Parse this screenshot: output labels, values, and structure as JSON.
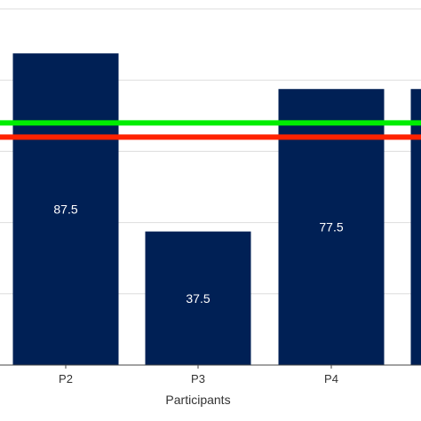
{
  "chart_data": {
    "type": "bar",
    "categories": [
      "P2",
      "P3",
      "P4",
      ""
    ],
    "values": [
      87.5,
      37.5,
      77.5,
      77.5
    ],
    "value_labels": [
      "87.5",
      "37.5",
      "77.5",
      ""
    ],
    "xlabel": "Participants",
    "ylabel": "",
    "ylim": [
      0,
      100
    ],
    "grid": true,
    "reference_lines": [
      {
        "value": 68,
        "color": "#00ee00"
      },
      {
        "value": 64,
        "color": "#ff2200"
      }
    ]
  },
  "colors": {
    "bar": "#002055",
    "grid": "#dddddd",
    "axis": "#444444"
  }
}
